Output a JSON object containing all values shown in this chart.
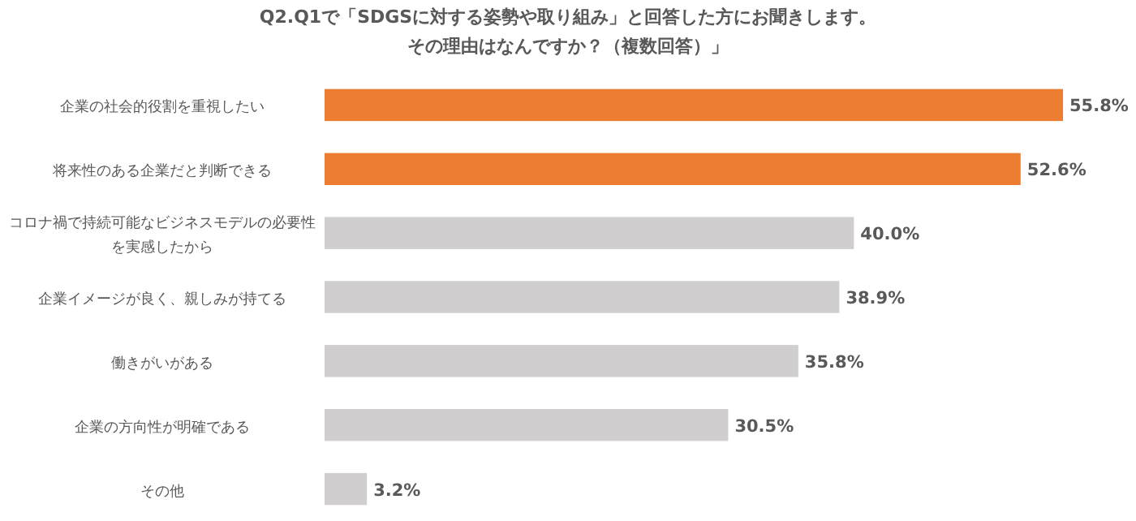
{
  "chart_data": {
    "type": "bar",
    "orientation": "horizontal",
    "title": "Q2.Q1で「SDGSに対する姿勢や取り組み」と回答した方にお聞きします。",
    "subtitle": "その理由はなんですか？（複数回答）」",
    "categories": [
      "企業の社会的役割を重視したい",
      "将来性のある企業だと判断できる",
      "コロナ禍で持続可能なビジネスモデルの必要性を実感したから",
      "企業イメージが良く、親しみが持てる",
      "働きがいがある",
      "企業の方向性が明確である",
      "その他"
    ],
    "values": [
      55.8,
      52.6,
      40.0,
      38.9,
      35.8,
      30.5,
      3.2
    ],
    "value_labels": [
      "55.8%",
      "52.6%",
      "40.0%",
      "38.9%",
      "35.8%",
      "30.5%",
      "3.2%"
    ],
    "colors": [
      "#ed7d31",
      "#ed7d31",
      "#d0cece",
      "#d0cece",
      "#d0cece",
      "#d0cece",
      "#d0cece"
    ]
  }
}
